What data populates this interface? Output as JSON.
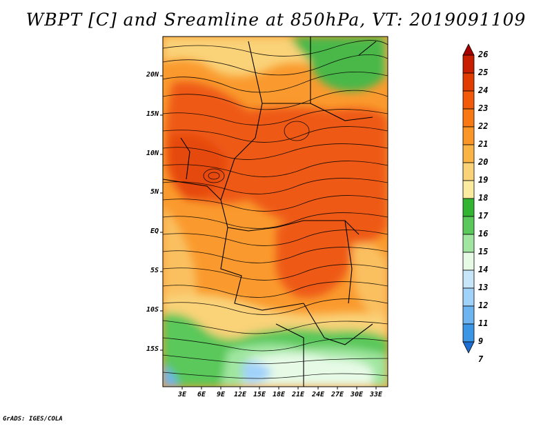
{
  "title": "WBPT [C] and Sreamline at 850hPa, VT: 2019091109",
  "credit": "GrADS: IGES/COLA",
  "map": {
    "lat_labels": [
      "20N",
      "15N",
      "10N",
      "5N",
      "EQ",
      "5S",
      "10S",
      "15S"
    ],
    "lon_labels": [
      "3E",
      "6E",
      "9E",
      "12E",
      "15E",
      "18E",
      "21E",
      "24E",
      "27E",
      "30E",
      "33E"
    ]
  },
  "colorbar": {
    "labels": [
      "26",
      "25",
      "24",
      "23",
      "22",
      "21",
      "20",
      "19",
      "18",
      "17",
      "16",
      "15",
      "14",
      "13",
      "12",
      "11",
      "9",
      "7"
    ],
    "colors": [
      "#a50000",
      "#c81e00",
      "#e13c00",
      "#f05a0a",
      "#f87814",
      "#fa9628",
      "#fab446",
      "#fad278",
      "#faeba0",
      "#32b432",
      "#5ac85a",
      "#a0e6a0",
      "#e6fae6",
      "#c8e6fa",
      "#a0d2fa",
      "#6eb4f0",
      "#3c96e6",
      "#1e6ed2"
    ]
  }
}
